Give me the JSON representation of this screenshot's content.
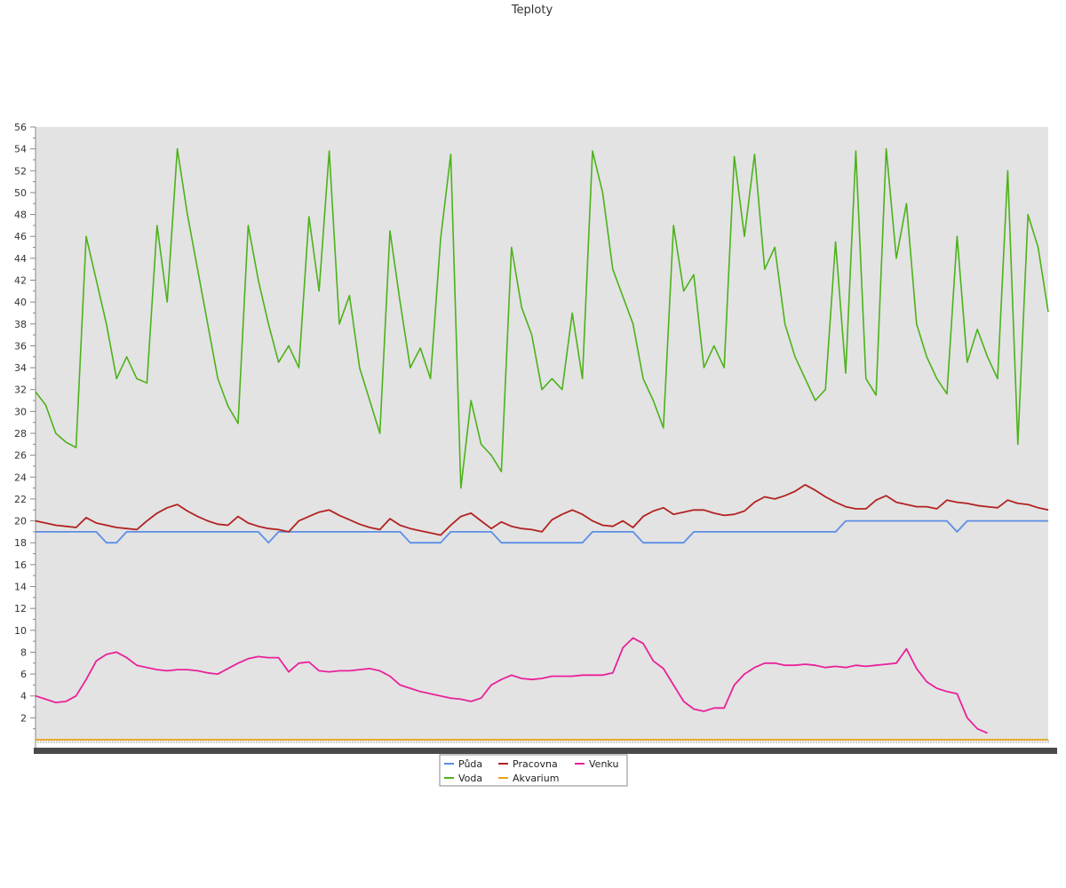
{
  "chart_data": {
    "type": "line",
    "title": "Teploty",
    "xlabel": "",
    "ylabel": "",
    "ylim": [
      0,
      56
    ],
    "yticks": [
      2,
      4,
      6,
      8,
      10,
      12,
      14,
      16,
      18,
      20,
      22,
      24,
      26,
      28,
      30,
      32,
      34,
      36,
      38,
      40,
      42,
      44,
      46,
      48,
      50,
      52,
      54,
      56
    ],
    "x_tick_labels": "illegible",
    "grid": false,
    "background": "#e3e3e3",
    "legend_position": "bottom-center",
    "x": [
      0,
      1,
      2,
      3,
      4,
      5,
      6,
      7,
      8,
      9,
      10,
      11,
      12,
      13,
      14,
      15,
      16,
      17,
      18,
      19,
      20,
      21,
      22,
      23,
      24,
      25,
      26,
      27,
      28,
      29,
      30,
      31,
      32,
      33,
      34,
      35,
      36,
      37,
      38,
      39,
      40,
      41,
      42,
      43,
      44,
      45,
      46,
      47,
      48,
      49,
      50,
      51,
      52,
      53,
      54,
      55,
      56,
      57,
      58,
      59,
      60,
      61,
      62,
      63,
      64,
      65,
      66,
      67,
      68,
      69,
      70,
      71,
      72,
      73,
      74,
      75,
      76,
      77,
      78,
      79,
      80,
      81,
      82,
      83,
      84,
      85,
      86,
      87,
      88,
      89,
      90,
      91,
      92,
      93,
      94,
      95,
      96,
      97,
      98,
      99,
      100
    ],
    "series": [
      {
        "name": "Půda",
        "color": "#5b8ee6",
        "values": [
          19,
          19,
          19,
          19,
          19,
          19,
          19,
          18,
          18,
          19,
          19,
          19,
          19,
          19,
          19,
          19,
          19,
          19,
          19,
          19,
          19,
          19,
          19,
          18,
          19,
          19,
          19,
          19,
          19,
          19,
          19,
          19,
          19,
          19,
          19,
          19,
          19,
          18,
          18,
          18,
          18,
          19,
          19,
          19,
          19,
          19,
          18,
          18,
          18,
          18,
          18,
          18,
          18,
          18,
          18,
          19,
          19,
          19,
          19,
          19,
          18,
          18,
          18,
          18,
          18,
          19,
          19,
          19,
          19,
          19,
          19,
          19,
          19,
          19,
          19,
          19,
          19,
          19,
          19,
          19,
          20,
          20,
          20,
          20,
          20,
          20,
          20,
          20,
          20,
          20,
          20,
          19,
          20,
          20,
          20,
          20,
          20,
          20,
          20,
          20,
          20
        ]
      },
      {
        "name": "Voda",
        "color": "#4cb21a",
        "values": [
          31.8,
          30.6,
          28,
          27.2,
          26.7,
          46,
          42,
          38,
          33,
          35,
          33,
          32.6,
          47,
          40,
          54,
          48,
          43,
          38,
          33,
          30.5,
          28.9,
          47,
          42,
          38,
          34.5,
          36,
          34,
          47.8,
          41,
          53.8,
          38,
          40.6,
          34,
          31,
          28,
          46.5,
          40,
          34,
          35.8,
          33,
          45.8,
          53.5,
          23,
          31,
          27,
          26,
          24.5,
          45,
          39.5,
          37,
          32,
          33,
          32,
          39,
          33,
          53.8,
          50,
          43,
          40.5,
          38,
          33,
          31,
          28.5,
          47,
          41,
          42.5,
          34,
          36,
          34,
          53.3,
          46,
          53.5,
          43,
          45,
          38,
          35,
          33,
          31,
          32,
          45.5,
          33.5,
          53.8,
          33,
          31.5,
          54,
          44,
          49,
          38,
          35,
          33,
          31.6,
          46,
          34.5,
          37.5,
          35,
          33,
          52,
          27,
          48,
          45,
          39.1
        ]
      },
      {
        "name": "Pracovna",
        "color": "#b22222",
        "values": [
          20,
          19.8,
          19.6,
          19.5,
          19.4,
          20.3,
          19.8,
          19.6,
          19.4,
          19.3,
          19.2,
          20,
          20.7,
          21.2,
          21.5,
          20.9,
          20.4,
          20,
          19.7,
          19.6,
          20.4,
          19.8,
          19.5,
          19.3,
          19.2,
          19,
          20,
          20.4,
          20.8,
          21,
          20.5,
          20.1,
          19.7,
          19.4,
          19.2,
          20.2,
          19.6,
          19.3,
          19.1,
          18.9,
          18.7,
          19.6,
          20.4,
          20.7,
          20,
          19.3,
          19.9,
          19.5,
          19.3,
          19.2,
          19,
          20.1,
          20.6,
          21,
          20.6,
          20,
          19.6,
          19.5,
          20,
          19.4,
          20.4,
          20.9,
          21.2,
          20.6,
          20.8,
          21,
          21,
          20.7,
          20.5,
          20.6,
          20.9,
          21.7,
          22.2,
          22,
          22.3,
          22.7,
          23.3,
          22.8,
          22.2,
          21.7,
          21.3,
          21.1,
          21.1,
          21.9,
          22.3,
          21.7,
          21.5,
          21.3,
          21.3,
          21.1,
          21.9,
          21.7,
          21.6,
          21.4,
          21.3,
          21.2,
          21.9,
          21.6,
          21.5,
          21.2,
          21
        ]
      },
      {
        "name": "Akvarium",
        "color": "#e8a317",
        "values": [
          0,
          0,
          0,
          0,
          0,
          0,
          0,
          0,
          0,
          0,
          0,
          0,
          0,
          0,
          0,
          0,
          0,
          0,
          0,
          0,
          0,
          0,
          0,
          0,
          0,
          0,
          0,
          0,
          0,
          0,
          0,
          0,
          0,
          0,
          0,
          0,
          0,
          0,
          0,
          0,
          0,
          0,
          0,
          0,
          0,
          0,
          0,
          0,
          0,
          0,
          0,
          0,
          0,
          0,
          0,
          0,
          0,
          0,
          0,
          0,
          0,
          0,
          0,
          0,
          0,
          0,
          0,
          0,
          0,
          0,
          0,
          0,
          0,
          0,
          0,
          0,
          0,
          0,
          0,
          0,
          0,
          0,
          0,
          0,
          0,
          0,
          0,
          0,
          0,
          0,
          0,
          0,
          0,
          0,
          0,
          0,
          0,
          0,
          0,
          0,
          0
        ]
      },
      {
        "name": "Venku",
        "color": "#e8229a",
        "values": [
          4,
          3.7,
          3.4,
          3.5,
          4,
          5.5,
          7.2,
          7.8,
          8,
          7.5,
          6.8,
          6.6,
          6.4,
          6.3,
          6.4,
          6.4,
          6.3,
          6.1,
          6,
          6.5,
          7,
          7.4,
          7.6,
          7.5,
          7.5,
          6.2,
          7,
          7.1,
          6.3,
          6.2,
          6.3,
          6.3,
          6.4,
          6.5,
          6.3,
          5.8,
          5,
          4.7,
          4.4,
          4.2,
          4,
          3.8,
          3.7,
          3.5,
          3.8,
          5,
          5.5,
          5.9,
          5.6,
          5.5,
          5.6,
          5.8,
          5.8,
          5.8,
          5.9,
          5.9,
          5.9,
          6.1,
          8.4,
          9.3,
          8.8,
          7.2,
          6.5,
          5,
          3.5,
          2.8,
          2.6,
          2.9,
          2.9,
          5,
          6,
          6.6,
          7,
          7,
          6.8,
          6.8,
          6.9,
          6.8,
          6.6,
          6.7,
          6.6,
          6.8,
          6.7,
          6.8,
          6.9,
          7,
          8.3,
          6.5,
          5.3,
          4.7,
          4.4,
          4.2,
          2,
          1,
          0.6,
          null,
          null,
          null,
          null,
          null,
          null
        ]
      }
    ]
  }
}
